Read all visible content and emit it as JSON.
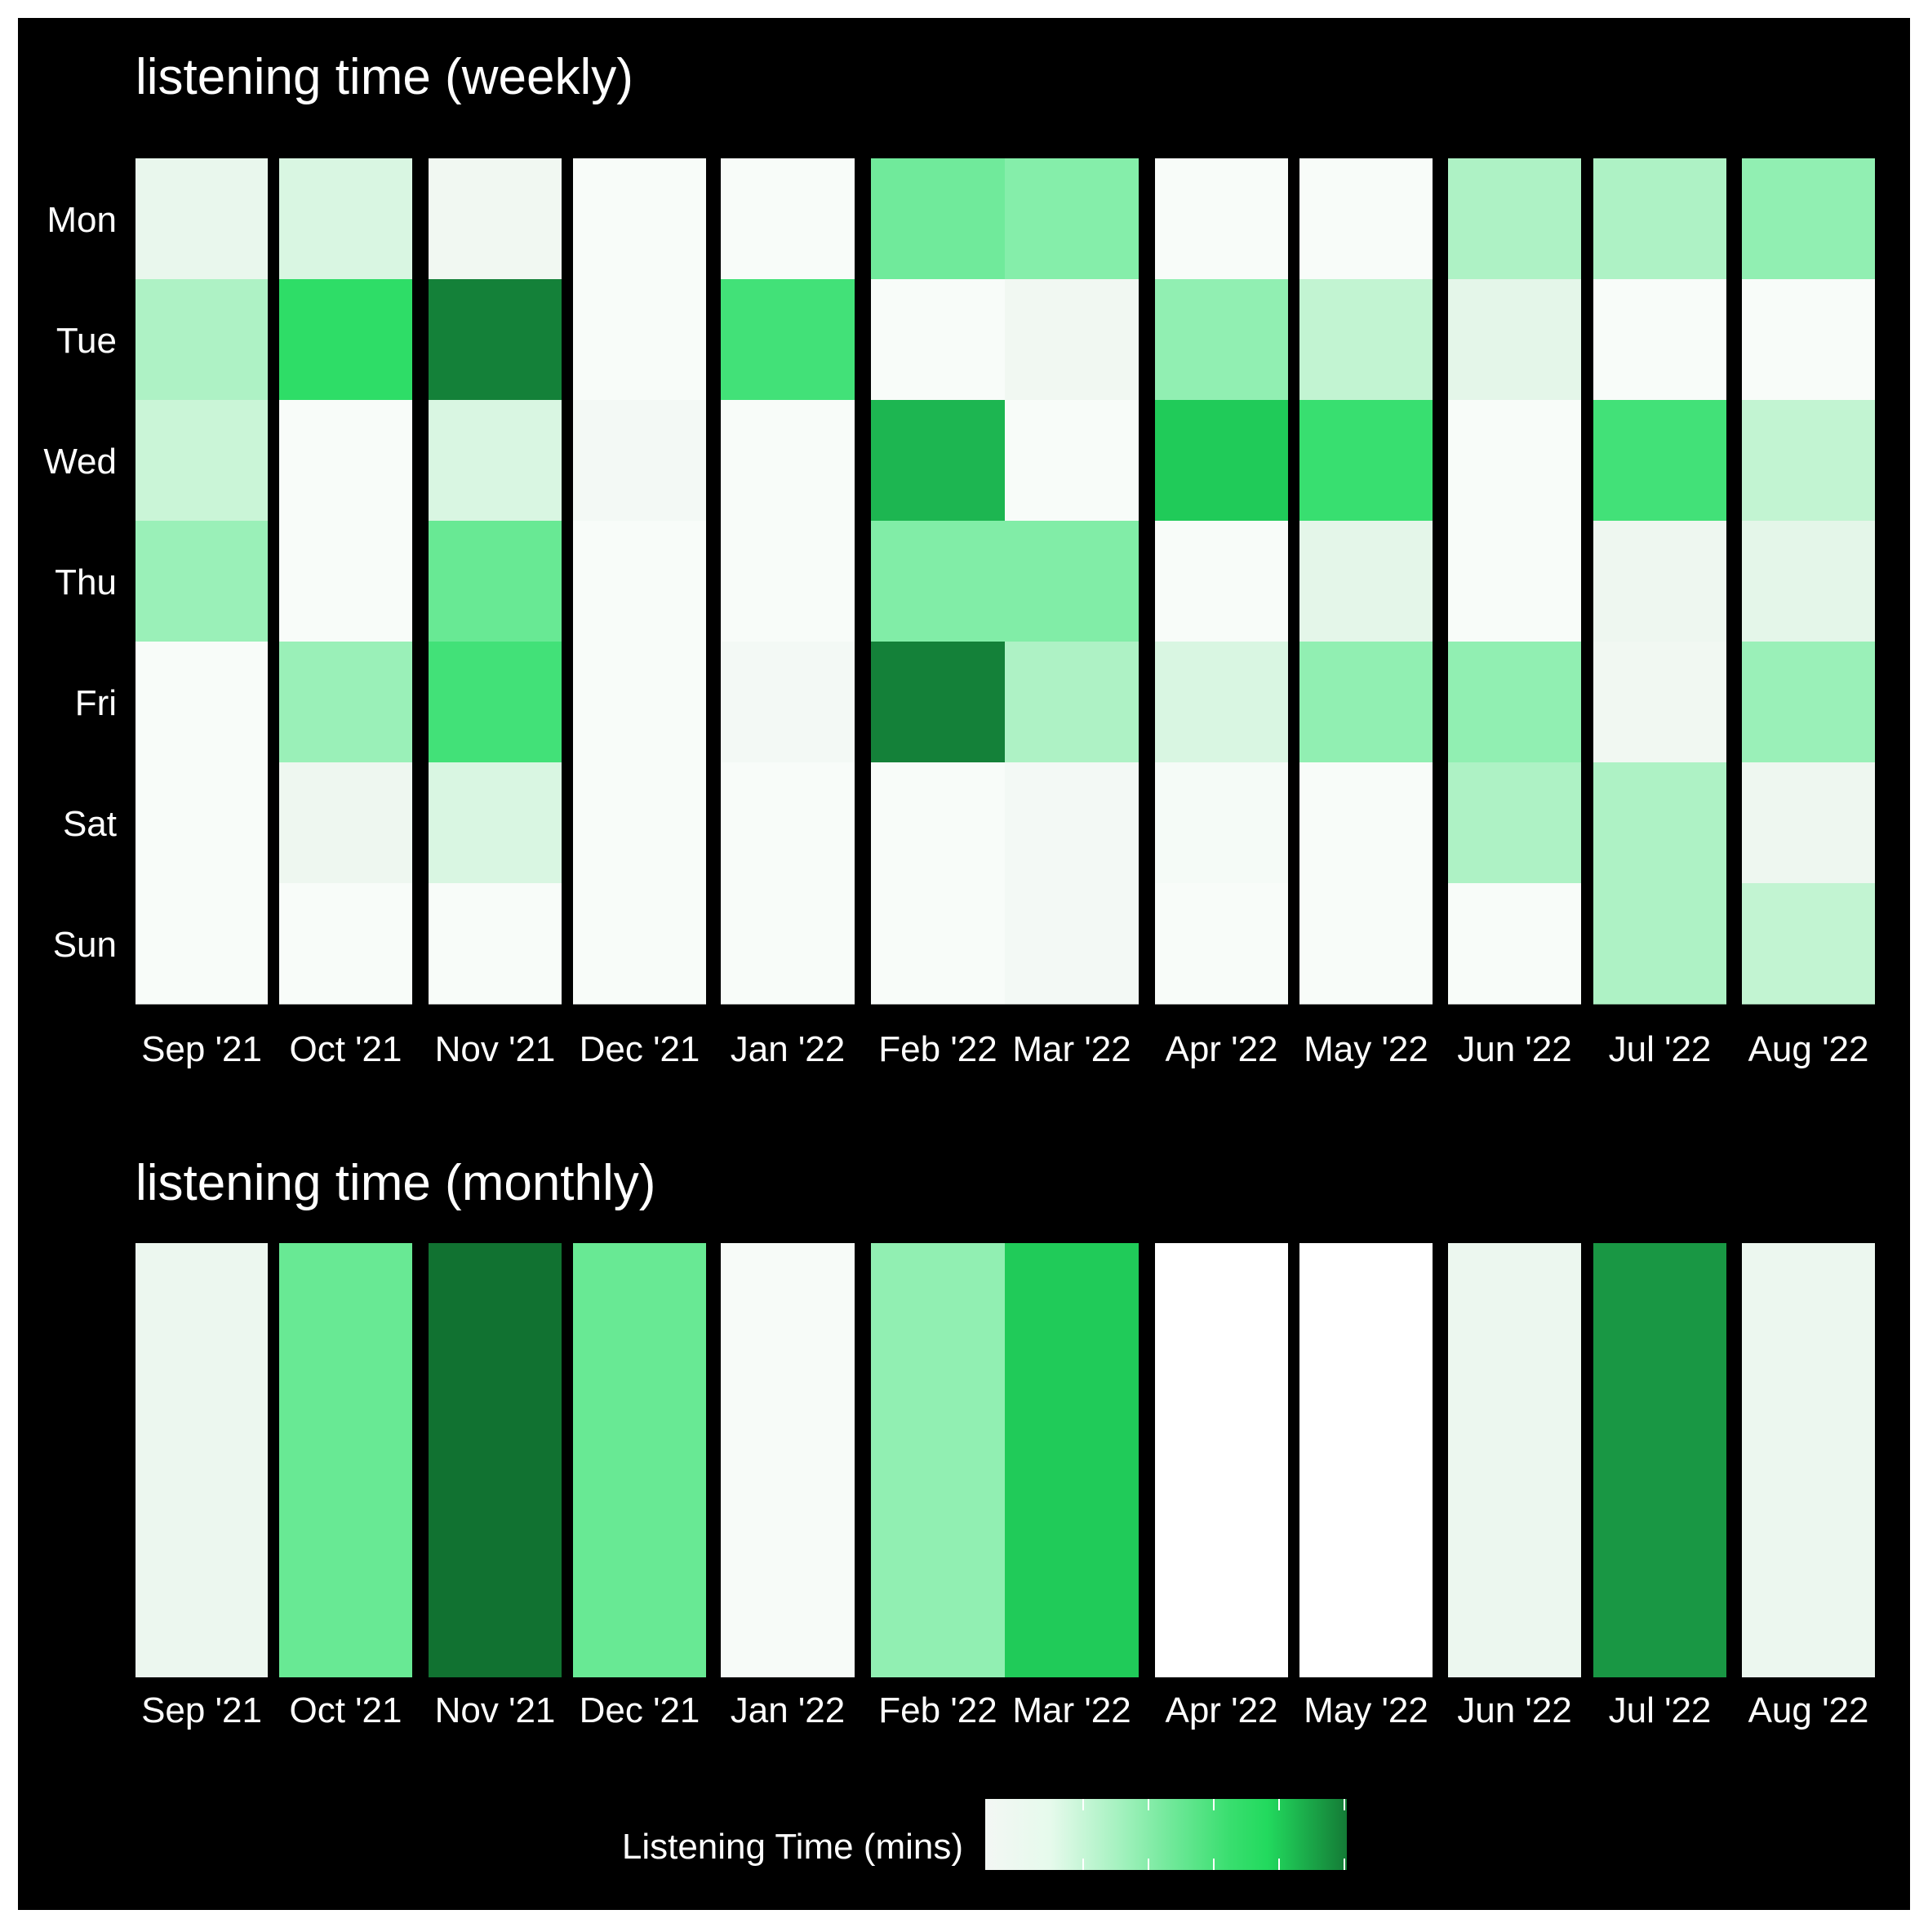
{
  "chart_data": [
    {
      "type": "heatmap",
      "title": "listening time (weekly)",
      "months": [
        "Sep '21",
        "Oct '21",
        "Nov '21",
        "Dec '21",
        "Jan '22",
        "Feb '22",
        "Mar '22",
        "Apr '22",
        "May '22",
        "Jun '22",
        "Jul '22",
        "Aug '22"
      ],
      "days": [
        "Mon",
        "Tue",
        "Wed",
        "Thu",
        "Fri",
        "Sat",
        "Sun"
      ],
      "values": [
        [
          0.16,
          0.22,
          0.12,
          0.06,
          0.06,
          0.5,
          0.45,
          0.06,
          0.06,
          0.35,
          0.35,
          0.42
        ],
        [
          0.35,
          0.68,
          0.95,
          0.06,
          0.62,
          0.06,
          0.12,
          0.42,
          0.3,
          0.18,
          0.06,
          0.06
        ],
        [
          0.28,
          0.06,
          0.22,
          0.1,
          0.06,
          0.8,
          0.06,
          0.75,
          0.65,
          0.06,
          0.62,
          0.3
        ],
        [
          0.4,
          0.06,
          0.52,
          0.06,
          0.06,
          0.46,
          0.46,
          0.06,
          0.18,
          0.06,
          0.14,
          0.18
        ],
        [
          0.06,
          0.4,
          0.62,
          0.06,
          0.1,
          0.95,
          0.35,
          0.22,
          0.42,
          0.42,
          0.12,
          0.4
        ],
        [
          0.06,
          0.14,
          0.22,
          0.06,
          0.06,
          0.06,
          0.1,
          0.08,
          0.06,
          0.35,
          0.35,
          0.14
        ],
        [
          0.06,
          0.06,
          0.06,
          0.06,
          0.06,
          0.06,
          0.1,
          0.06,
          0.06,
          0.06,
          0.35,
          0.3
        ]
      ]
    },
    {
      "type": "heatmap",
      "title": "listening time (monthly)",
      "months": [
        "Sep '21",
        "Oct '21",
        "Nov '21",
        "Dec '21",
        "Jan '22",
        "Feb '22",
        "Mar '22",
        "Apr '22",
        "May '22",
        "Jun '22",
        "Jul '22",
        "Aug '22"
      ],
      "values": [
        0.15,
        0.52,
        1.0,
        0.52,
        0.07,
        0.42,
        0.75,
        0.0,
        0.0,
        0.15,
        0.88,
        0.15
      ]
    }
  ],
  "legend": {
    "title": "Listening Time (mins)"
  },
  "colors": {
    "background": "#000000",
    "scale": [
      "#ffffff",
      "#eef7f0",
      "#c8f5d6",
      "#8eefb0",
      "#52e585",
      "#22da5e",
      "#1a9e48",
      "#117231"
    ]
  }
}
